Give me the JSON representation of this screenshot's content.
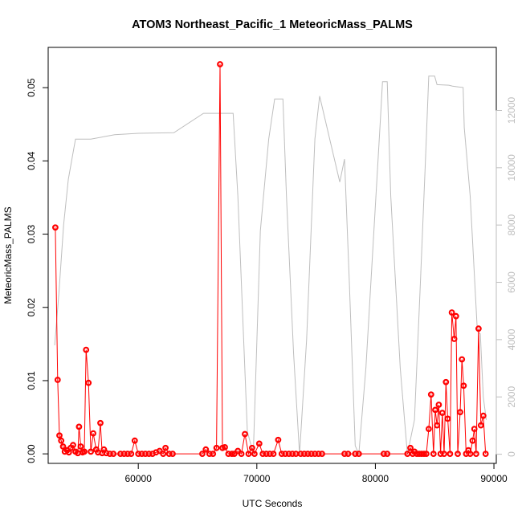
{
  "chart_data": {
    "type": "line",
    "title": "ATOM3 Northeast_Pacific_1 MeteoricMass_PALMS",
    "xlabel": "UTC Seconds",
    "ylabel": "MeteoricMass_PALMS",
    "xlim": [
      52400,
      90200
    ],
    "ylim": [
      -0.0013,
      0.0555
    ],
    "y2lim": [
      -320,
      14200
    ],
    "x_ticks": [
      "60000",
      "70000",
      "80000",
      "90000"
    ],
    "y_ticks": [
      "0.00",
      "0.01",
      "0.02",
      "0.03",
      "0.04",
      "0.05"
    ],
    "y2_ticks": [
      "0",
      "2000",
      "4000",
      "6000",
      "8000",
      "10000",
      "12000"
    ],
    "colors": {
      "series": "#ff0000",
      "altitude": "#bebebe",
      "axis": "#000000",
      "axis2": "#bdbdbd"
    },
    "series": [
      {
        "values": [
          [
            53000,
            0.0309
          ],
          [
            53200,
            0.0101
          ],
          [
            53350,
            0.0025
          ],
          [
            53500,
            0.0018
          ],
          [
            53650,
            0.001
          ],
          [
            53800,
            0.0003
          ],
          [
            54000,
            0.0005
          ],
          [
            54150,
            0.0002
          ],
          [
            54300,
            0.0008
          ],
          [
            54500,
            0.0012
          ],
          [
            54700,
            0.0003
          ],
          [
            54900,
            0.0001
          ],
          [
            55000,
            0.0037
          ],
          [
            55150,
            0.001
          ],
          [
            55300,
            0.0002
          ],
          [
            55450,
            0.0003
          ],
          [
            55600,
            0.0142
          ],
          [
            55800,
            0.0097
          ],
          [
            56000,
            0.0003
          ],
          [
            56200,
            0.0028
          ],
          [
            56450,
            0.0006
          ],
          [
            56600,
            0.0002
          ],
          [
            56800,
            0.0042
          ],
          [
            56950,
            0.0001
          ],
          [
            57100,
            0.0006
          ],
          [
            57300,
            0.0001
          ],
          [
            57600,
            0.0
          ],
          [
            57900,
            0.0
          ],
          [
            58500,
            0.0
          ],
          [
            58800,
            0.0
          ],
          [
            59100,
            0.0
          ],
          [
            59400,
            0.0
          ],
          [
            59700,
            0.0018
          ],
          [
            60000,
            0.0
          ],
          [
            60300,
            0.0
          ],
          [
            60600,
            0.0
          ],
          [
            60900,
            0.0
          ],
          [
            61200,
            0.0
          ],
          [
            61500,
            0.0002
          ],
          [
            61800,
            0.0004
          ],
          [
            62100,
            0.0
          ],
          [
            62300,
            0.0008
          ],
          [
            62600,
            0.0
          ],
          [
            62900,
            0.0
          ],
          [
            65400,
            0.0
          ],
          [
            65700,
            0.0006
          ],
          [
            66000,
            0.0
          ],
          [
            66300,
            0.0
          ],
          [
            66600,
            0.0008
          ],
          [
            66900,
            0.0532
          ],
          [
            67100,
            0.0008
          ],
          [
            67300,
            0.0009
          ],
          [
            67600,
            0.0
          ],
          [
            67900,
            0.0
          ],
          [
            68100,
            0.0
          ],
          [
            68400,
            0.0004
          ],
          [
            68700,
            0.0
          ],
          [
            69000,
            0.0027
          ],
          [
            69300,
            0.0
          ],
          [
            69600,
            0.0008
          ],
          [
            69800,
            0.0
          ],
          [
            70200,
            0.0014
          ],
          [
            70500,
            0.0
          ],
          [
            70800,
            0.0
          ],
          [
            71100,
            0.0
          ],
          [
            71400,
            0.0
          ],
          [
            71800,
            0.0019
          ],
          [
            72100,
            0.0
          ],
          [
            72400,
            0.0
          ],
          [
            72700,
            0.0
          ],
          [
            73000,
            0.0
          ],
          [
            73300,
            0.0
          ],
          [
            73700,
            0.0
          ],
          [
            74000,
            0.0
          ],
          [
            74300,
            0.0
          ],
          [
            74600,
            0.0
          ],
          [
            74900,
            0.0
          ],
          [
            75200,
            0.0
          ],
          [
            75500,
            0.0
          ],
          [
            77400,
            0.0
          ],
          [
            77700,
            0.0
          ],
          [
            78300,
            0.0
          ],
          [
            78600,
            0.0
          ],
          [
            80700,
            0.0
          ],
          [
            81000,
            0.0
          ],
          [
            82700,
            0.0
          ],
          [
            82950,
            0.0008
          ],
          [
            83150,
            0.0
          ],
          [
            83300,
            0.0003
          ],
          [
            83500,
            0.0
          ],
          [
            83700,
            0.0
          ],
          [
            83900,
            0.0
          ],
          [
            84100,
            0.0
          ],
          [
            84300,
            0.0
          ],
          [
            84500,
            0.0034
          ],
          [
            84700,
            0.0081
          ],
          [
            84900,
            0.0
          ],
          [
            85050,
            0.006
          ],
          [
            85200,
            0.0039
          ],
          [
            85350,
            0.0067
          ],
          [
            85500,
            0.0
          ],
          [
            85650,
            0.0056
          ],
          [
            85800,
            0.0
          ],
          [
            85950,
            0.0098
          ],
          [
            86100,
            0.0048
          ],
          [
            86300,
            0.0
          ],
          [
            86450,
            0.0193
          ],
          [
            86650,
            0.0157
          ],
          [
            86800,
            0.0188
          ],
          [
            86950,
            0.0
          ],
          [
            87150,
            0.0057
          ],
          [
            87300,
            0.0129
          ],
          [
            87450,
            0.0093
          ],
          [
            87650,
            0.0
          ],
          [
            87850,
            0.0005
          ],
          [
            88000,
            0.0
          ],
          [
            88200,
            0.0018
          ],
          [
            88350,
            0.0034
          ],
          [
            88500,
            0.0
          ],
          [
            88700,
            0.0171
          ],
          [
            88900,
            0.0039
          ],
          [
            89100,
            0.0052
          ],
          [
            89300,
            0.0
          ]
        ]
      },
      {
        "axis": "right",
        "values": [
          [
            52950,
            3800
          ],
          [
            53300,
            5600
          ],
          [
            53700,
            8000
          ],
          [
            54100,
            9600
          ],
          [
            54700,
            11000
          ],
          [
            56000,
            11000
          ],
          [
            58000,
            11150
          ],
          [
            60000,
            11200
          ],
          [
            63000,
            11220
          ],
          [
            65500,
            11900
          ],
          [
            68000,
            11900
          ],
          [
            68400,
            9000
          ],
          [
            69200,
            800
          ],
          [
            69700,
            0
          ],
          [
            70300,
            7800
          ],
          [
            71000,
            11000
          ],
          [
            71500,
            12400
          ],
          [
            72200,
            12400
          ],
          [
            72500,
            9000
          ],
          [
            73100,
            3500
          ],
          [
            73600,
            0
          ],
          [
            74200,
            4000
          ],
          [
            74900,
            11000
          ],
          [
            75300,
            12500
          ],
          [
            77000,
            9500
          ],
          [
            77400,
            10300
          ],
          [
            77800,
            6000
          ],
          [
            78300,
            300
          ],
          [
            78600,
            0
          ],
          [
            79200,
            3000
          ],
          [
            80400,
            11500
          ],
          [
            80600,
            13000
          ],
          [
            81000,
            13000
          ],
          [
            81300,
            9000
          ],
          [
            82100,
            3000
          ],
          [
            82700,
            0
          ],
          [
            83300,
            1200
          ],
          [
            83800,
            6000
          ],
          [
            84200,
            10000
          ],
          [
            84500,
            13200
          ],
          [
            85000,
            13200
          ],
          [
            85200,
            12900
          ],
          [
            86200,
            12880
          ],
          [
            86500,
            12850
          ],
          [
            87000,
            12820
          ],
          [
            87400,
            12800
          ],
          [
            87500,
            11400
          ],
          [
            88000,
            9000
          ],
          [
            88600,
            4300
          ],
          [
            88850,
            4200
          ],
          [
            89100,
            2000
          ],
          [
            89350,
            1200
          ]
        ]
      }
    ]
  }
}
